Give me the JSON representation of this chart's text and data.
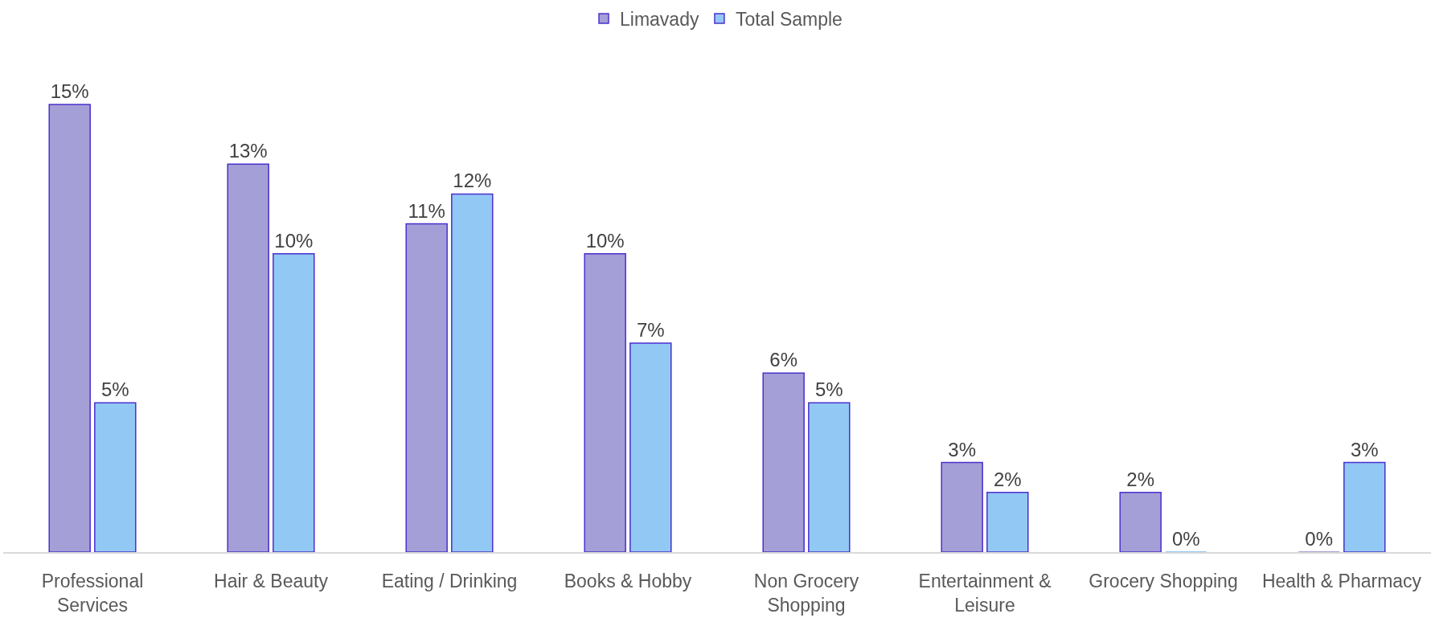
{
  "chart_data": {
    "type": "bar",
    "categories": [
      "Professional Services",
      "Hair & Beauty",
      "Eating / Drinking",
      "Books & Hobby",
      "Non Grocery Shopping",
      "Entertainment & Leisure",
      "Grocery Shopping",
      "Health & Pharmacy"
    ],
    "series": [
      {
        "name": "Limavady",
        "color": "#a49fd6",
        "values": [
          15,
          13,
          11,
          10,
          6,
          3,
          2,
          0
        ],
        "value_labels": [
          "15%",
          "13%",
          "11%",
          "10%",
          "6%",
          "3%",
          "2%",
          "0%"
        ]
      },
      {
        "name": "Total Sample",
        "color": "#92c8f4",
        "values": [
          5,
          10,
          12,
          7,
          5,
          2,
          0,
          3
        ],
        "value_labels": [
          "5%",
          "10%",
          "12%",
          "7%",
          "5%",
          "2%",
          "0%",
          "3%"
        ]
      }
    ],
    "legend": "top",
    "tick_labels": "x"
  }
}
